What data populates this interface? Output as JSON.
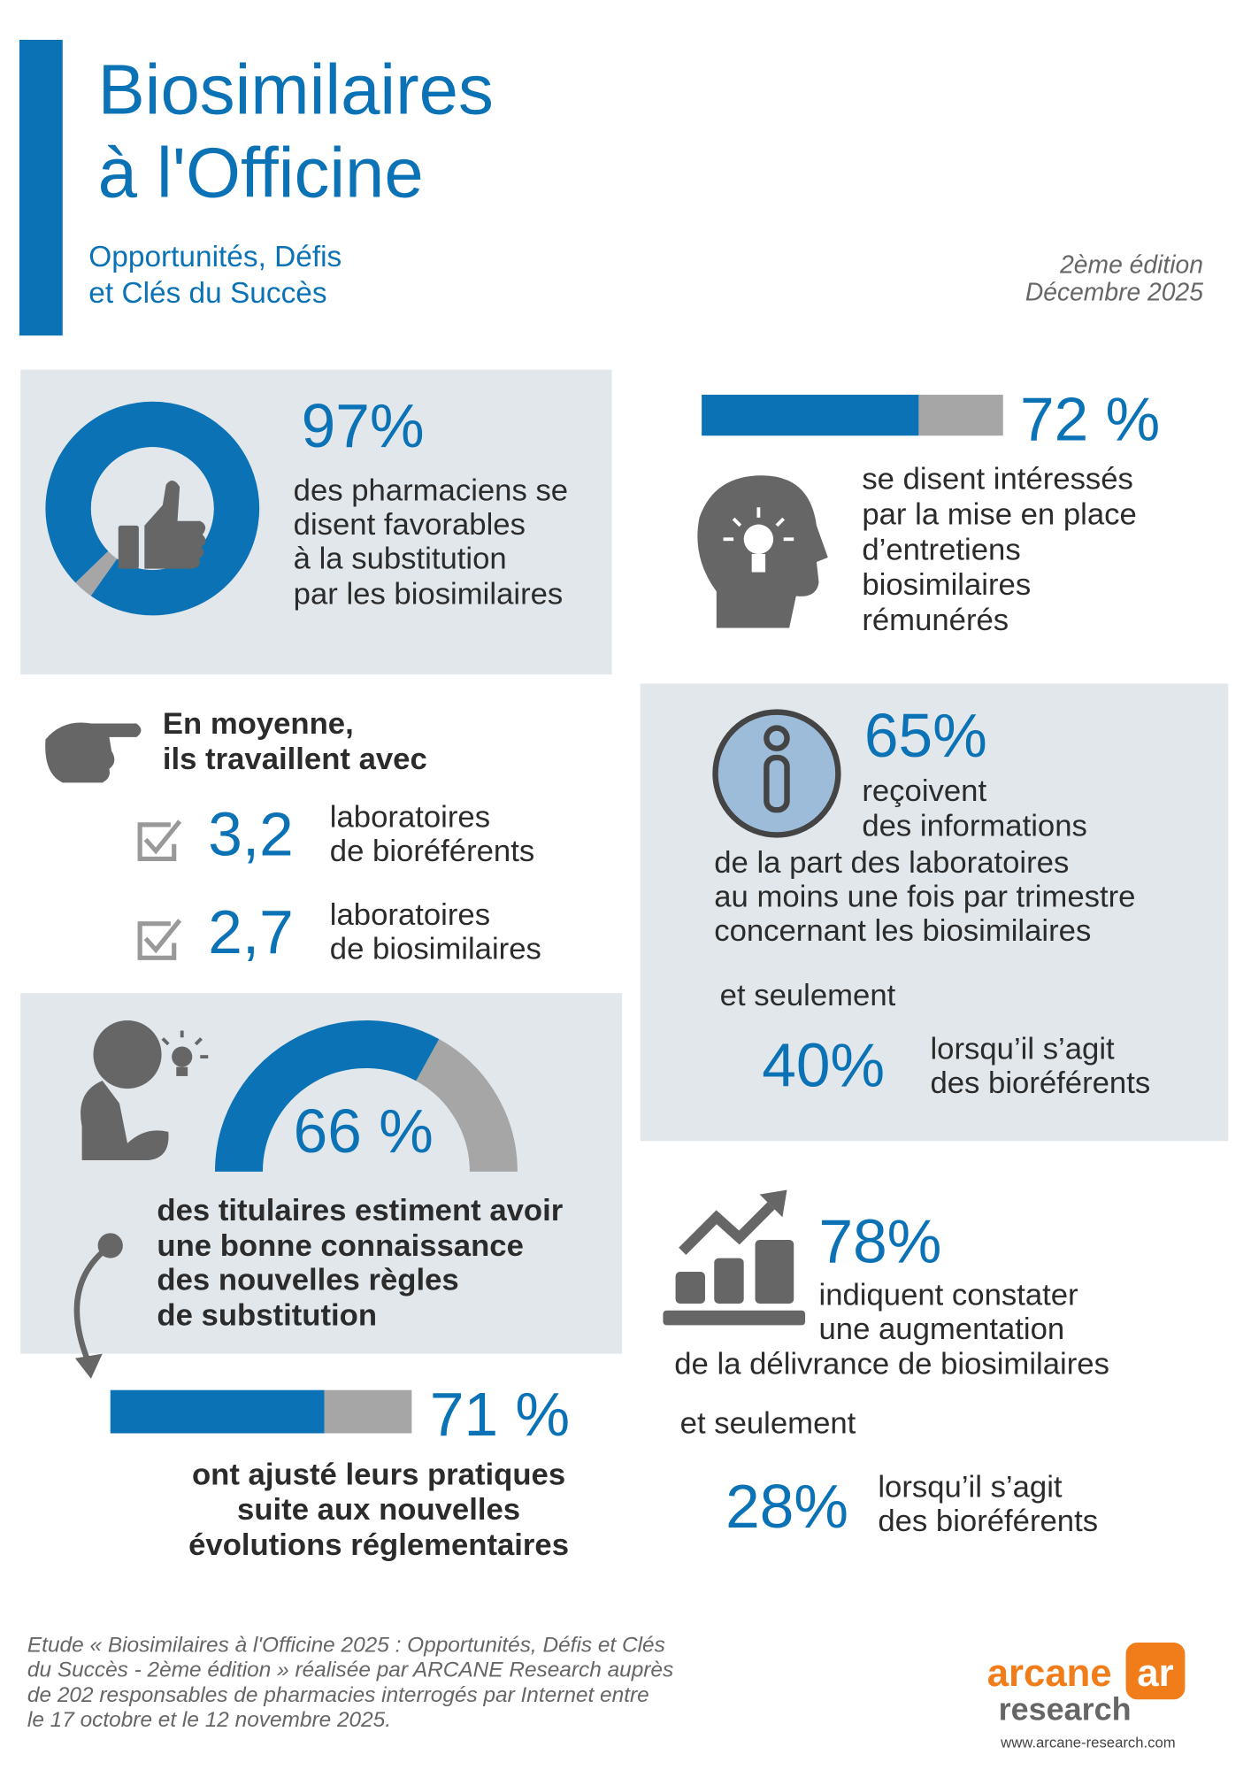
{
  "header": {
    "title": [
      "Biosimilaires",
      "à l'Officine"
    ],
    "subtitle": [
      "Opportunités, Défis",
      "et Clés du Succès"
    ],
    "edition": "2ème édition",
    "date": "Décembre 2025"
  },
  "favorable": {
    "value": 97,
    "label": "97%",
    "text": [
      "des pharmaciens se",
      "disent favorables",
      "à la substitution",
      "par les biosimilaires"
    ]
  },
  "interest": {
    "value": 72,
    "label": "72 %",
    "text": [
      "se disent intéressés",
      "par la mise en place",
      "d’entretiens",
      "biosimilaires",
      "rémunérés"
    ]
  },
  "labs": {
    "intro": [
      "En moyenne,",
      "ils travaillent avec"
    ],
    "items": [
      {
        "count": "3,2",
        "text": [
          "laboratoires",
          "de bioréférents"
        ]
      },
      {
        "count": "2,7",
        "text": [
          "laboratoires",
          "de biosimilaires"
        ]
      }
    ]
  },
  "info": {
    "label": "65%",
    "text": [
      "reçoivent",
      "des informations",
      "de la part des laboratoires",
      "au moins une fois par trimestre",
      "concernant les biosimilaires"
    ],
    "and": "et seulement",
    "sub": {
      "label": "40%",
      "text": [
        "lorsqu’il s’agit",
        "des bioréférents"
      ]
    }
  },
  "knowledge": {
    "value": 66,
    "label": "66 %",
    "text": [
      "des titulaires estiment avoir",
      "une bonne connaissance",
      "des nouvelles règles",
      "de substitution"
    ]
  },
  "adjusted": {
    "value": 71,
    "label": "71 %",
    "text": [
      "ont ajusté leurs pratiques",
      "suite aux nouvelles",
      "évolutions réglementaires"
    ]
  },
  "increase": {
    "label": "78%",
    "text": [
      "indiquent constater",
      "une augmentation",
      "de la délivrance de biosimilaires"
    ],
    "and": "et seulement",
    "sub": {
      "label": "28%",
      "text": [
        "lorsqu’il s’agit",
        "des bioréférents"
      ]
    }
  },
  "footer": {
    "note": [
      "Etude « Biosimilaires à l'Officine 2025 : Opportunités, Défis et Clés",
      "du Succès - 2ème édition » réalisée par ARCANE Research auprès",
      "de 202 responsables de pharmacies interrogés par Internet entre",
      "le 17 octobre et le 12 novembre 2025."
    ],
    "logo": {
      "mark": "ar",
      "name": "arcane",
      "sub": "research",
      "url": "www.arcane-research.com"
    }
  }
}
